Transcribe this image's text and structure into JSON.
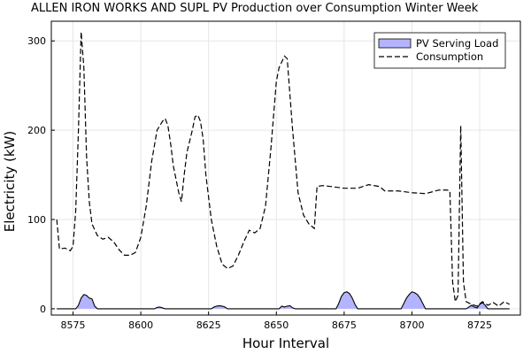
{
  "chart_data": {
    "type": "area",
    "title": "ALLEN IRON WORKS AND SUPL PV Production over Consumption Winter Week",
    "xlabel": "Hour Interval",
    "ylabel": "Electricity (kW)",
    "xlim": [
      8567,
      8740
    ],
    "ylim": [
      -7,
      322
    ],
    "xticks": [
      8575,
      8600,
      8625,
      8650,
      8675,
      8700,
      8725
    ],
    "yticks": [
      0,
      100,
      200,
      300
    ],
    "grid": true,
    "legend_position": "top-right",
    "series": [
      {
        "name": "PV Serving Load",
        "style": "filled-area",
        "color": "#b3b3ff",
        "x": [
          8569,
          8576,
          8577,
          8578,
          8579,
          8580,
          8581,
          8582,
          8583,
          8584,
          8605,
          8606,
          8607,
          8608,
          8609,
          8626,
          8627,
          8628,
          8629,
          8630,
          8631,
          8632,
          8651,
          8652,
          8653,
          8654,
          8655,
          8656,
          8657,
          8672,
          8673,
          8674,
          8675,
          8676,
          8677,
          8678,
          8679,
          8680,
          8696,
          8697,
          8698,
          8699,
          8700,
          8701,
          8702,
          8703,
          8704,
          8705,
          8720,
          8721,
          8722,
          8723,
          8724,
          8725,
          8726,
          8727,
          8728,
          8736
        ],
        "y": [
          0,
          0,
          4,
          12,
          16,
          15,
          12,
          11,
          3,
          0,
          0,
          1.5,
          2,
          1,
          0,
          0,
          2,
          3,
          3.5,
          3,
          2,
          0,
          0,
          3,
          2,
          3,
          3.5,
          1,
          0,
          0,
          6,
          14,
          18,
          19,
          17,
          12,
          5,
          0,
          0,
          6,
          12,
          16,
          19,
          18,
          16,
          12,
          6,
          0,
          0,
          2,
          4,
          2,
          1,
          5,
          7,
          4,
          0,
          0
        ]
      },
      {
        "name": "Consumption",
        "style": "dashed",
        "color": "#000000",
        "x": [
          8569,
          8570,
          8572,
          8574,
          8575,
          8576,
          8577,
          8578,
          8579,
          8580,
          8581,
          8582,
          8584,
          8586,
          8588,
          8590,
          8592,
          8594,
          8596,
          8598,
          8600,
          8602,
          8604,
          8606,
          8608,
          8609,
          8610,
          8611,
          8612,
          8614,
          8615,
          8616,
          8617,
          8619,
          8620,
          8621,
          8622,
          8623,
          8624,
          8626,
          8628,
          8630,
          8632,
          8634,
          8636,
          8638,
          8640,
          8642,
          8644,
          8646,
          8648,
          8650,
          8651,
          8653,
          8654,
          8656,
          8658,
          8660,
          8662,
          8664,
          8665,
          8667,
          8670,
          8675,
          8680,
          8684,
          8688,
          8690,
          8695,
          8700,
          8705,
          8710,
          8713,
          8714,
          8715,
          8716,
          8717,
          8718,
          8719,
          8720,
          8722,
          8724,
          8726,
          8728,
          8730,
          8732,
          8734,
          8736
        ],
        "y": [
          100,
          67,
          68,
          65,
          70,
          110,
          200,
          310,
          270,
          170,
          120,
          95,
          82,
          78,
          80,
          75,
          66,
          60,
          60,
          63,
          80,
          115,
          165,
          200,
          210,
          213,
          205,
          185,
          160,
          130,
          120,
          150,
          175,
          200,
          215,
          217,
          210,
          190,
          150,
          100,
          70,
          50,
          45,
          48,
          60,
          75,
          88,
          85,
          90,
          115,
          180,
          255,
          270,
          283,
          280,
          200,
          130,
          105,
          95,
          90,
          137,
          138,
          137,
          135,
          135,
          139,
          137,
          132,
          132,
          130,
          129,
          133,
          133,
          132,
          30,
          8,
          15,
          205,
          30,
          8,
          5,
          3,
          8,
          4,
          7,
          3,
          8,
          5
        ]
      }
    ]
  }
}
